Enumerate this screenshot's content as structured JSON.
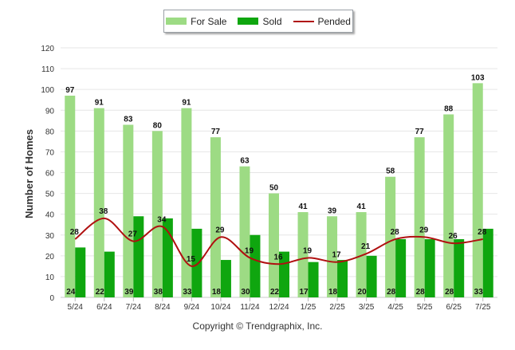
{
  "legend": {
    "for_sale": "For Sale",
    "sold": "Sold",
    "pended": "Pended"
  },
  "copyright": "Copyright © Trendgraphix, Inc.",
  "colors": {
    "for_sale": "#9ddb84",
    "sold": "#0fa60f",
    "pended": "#b01010",
    "grid": "#e6e6e6"
  },
  "chart_data": {
    "type": "bar",
    "title": "",
    "xlabel": "",
    "ylabel": "Number of Homes",
    "ylim": [
      0,
      120
    ],
    "yticks": [
      0,
      10,
      20,
      30,
      40,
      50,
      60,
      70,
      80,
      90,
      100,
      110,
      120
    ],
    "grid": true,
    "legend_position": "top-center",
    "categories": [
      "5/24",
      "6/24",
      "7/24",
      "8/24",
      "9/24",
      "10/24",
      "11/24",
      "12/24",
      "1/25",
      "2/25",
      "3/25",
      "4/25",
      "5/25",
      "6/25",
      "7/25"
    ],
    "series": [
      {
        "name": "For Sale",
        "type": "bar",
        "values": [
          97,
          91,
          83,
          80,
          91,
          77,
          63,
          50,
          41,
          39,
          41,
          58,
          77,
          88,
          103
        ]
      },
      {
        "name": "Sold",
        "type": "bar",
        "values": [
          24,
          22,
          39,
          38,
          33,
          18,
          30,
          22,
          17,
          18,
          20,
          28,
          28,
          28,
          33
        ]
      },
      {
        "name": "Pended",
        "type": "line",
        "values": [
          28,
          38,
          27,
          34,
          15,
          29,
          19,
          16,
          19,
          17,
          21,
          28,
          29,
          26,
          28
        ]
      }
    ]
  }
}
